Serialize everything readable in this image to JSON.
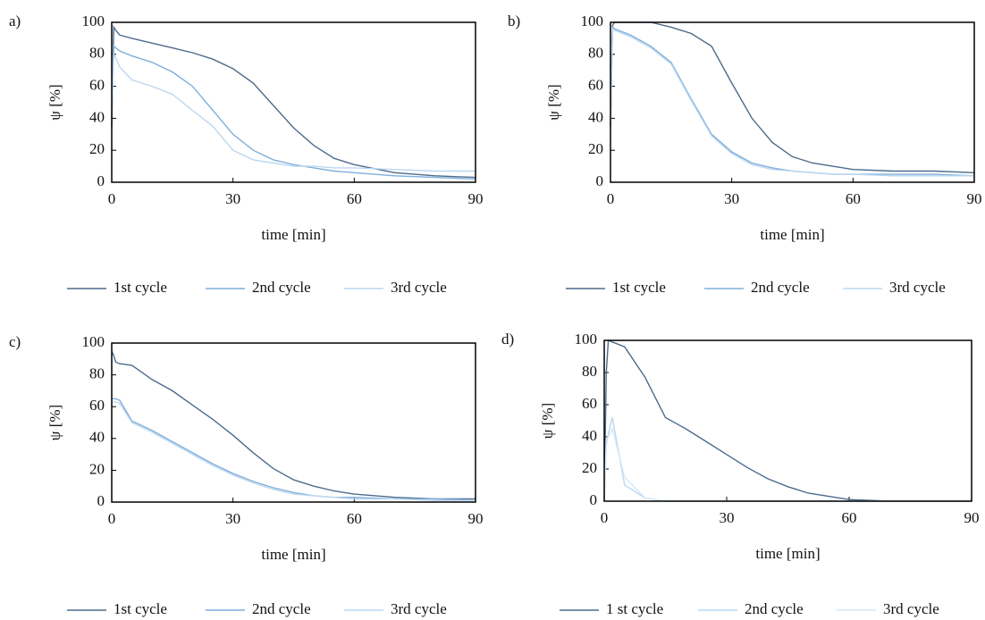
{
  "chart_data": [
    {
      "type": "line",
      "panel": "a)",
      "xlabel": "time [min]",
      "ylabel": "ψ [%]",
      "x": [
        0,
        0.5,
        1,
        2,
        5,
        10,
        15,
        20,
        25,
        30,
        35,
        40,
        45,
        50,
        55,
        60,
        70,
        80,
        90
      ],
      "xlim": [
        0,
        90
      ],
      "xticks": [
        0,
        30,
        60,
        90
      ],
      "ylim": [
        0,
        100
      ],
      "yticks": [
        0,
        20,
        40,
        60,
        80,
        100
      ],
      "series": [
        {
          "name": "1st cycle",
          "color": "#4d6b8c",
          "values": [
            35,
            97,
            95,
            92,
            90,
            87,
            84,
            81,
            77,
            71,
            62,
            48,
            34,
            23,
            15,
            11,
            6,
            4,
            3
          ]
        },
        {
          "name": "2nd cycle",
          "color": "#7eaedb",
          "values": [
            40,
            85,
            84,
            82,
            79,
            75,
            69,
            60,
            45,
            30,
            20,
            14,
            11,
            9,
            7,
            6,
            4,
            3,
            2
          ]
        },
        {
          "name": "3rd cycle",
          "color": "#bcd7f0",
          "values": [
            45,
            80,
            78,
            72,
            64,
            60,
            55,
            45,
            35,
            20,
            14,
            12,
            10,
            10,
            9,
            9,
            8,
            7,
            7
          ]
        }
      ]
    },
    {
      "type": "line",
      "panel": "b)",
      "xlabel": "time [min]",
      "ylabel": "ψ [%]",
      "x": [
        0,
        0.5,
        1,
        2,
        5,
        10,
        15,
        20,
        25,
        30,
        35,
        40,
        45,
        50,
        55,
        60,
        70,
        80,
        90
      ],
      "xlim": [
        0,
        90
      ],
      "xticks": [
        0,
        30,
        60,
        90
      ],
      "ylim": [
        0,
        100
      ],
      "yticks": [
        0,
        20,
        40,
        60,
        80,
        100
      ],
      "series": [
        {
          "name": "1st cycle",
          "color": "#4d6b8c",
          "values": [
            35,
            98,
            100,
            100,
            100,
            100,
            97,
            93,
            85,
            62,
            40,
            25,
            16,
            12,
            10,
            8,
            7,
            7,
            6
          ]
        },
        {
          "name": "2nd cycle",
          "color": "#7eaedb",
          "values": [
            35,
            97,
            96,
            95,
            92,
            85,
            75,
            52,
            30,
            19,
            12,
            9,
            7,
            6,
            5,
            5,
            5,
            5,
            4
          ]
        },
        {
          "name": "3rd cycle",
          "color": "#bcd7f0",
          "values": [
            35,
            96,
            95,
            94,
            91,
            84,
            74,
            51,
            29,
            18,
            11,
            8,
            7,
            6,
            5,
            5,
            4,
            4,
            4
          ]
        }
      ]
    },
    {
      "type": "line",
      "panel": "c)",
      "xlabel": "time [min]",
      "ylabel": "ψ [%]",
      "x": [
        0,
        0.5,
        1,
        2,
        5,
        10,
        15,
        20,
        25,
        30,
        35,
        40,
        45,
        50,
        55,
        60,
        70,
        80,
        90
      ],
      "xlim": [
        0,
        90
      ],
      "xticks": [
        0,
        30,
        60,
        90
      ],
      "ylim": [
        0,
        100
      ],
      "yticks": [
        0,
        20,
        40,
        60,
        80,
        100
      ],
      "series": [
        {
          "name": "1st cycle",
          "color": "#4d6b8c",
          "values": [
            95,
            92,
            88,
            87,
            86,
            77,
            70,
            61,
            52,
            42,
            31,
            21,
            14,
            10,
            7,
            5,
            3,
            2,
            2
          ]
        },
        {
          "name": "2nd cycle",
          "color": "#7eaedb",
          "values": [
            65,
            65,
            65,
            64,
            51,
            45,
            38,
            31,
            24,
            18,
            13,
            9,
            6,
            4,
            3,
            3,
            2,
            2,
            1
          ]
        },
        {
          "name": "3rd cycle",
          "color": "#bcd7f0",
          "values": [
            63,
            63,
            63,
            62,
            50,
            44,
            37,
            30,
            23,
            17,
            12,
            8,
            5,
            4,
            3,
            2,
            2,
            1,
            1
          ]
        }
      ]
    },
    {
      "type": "line",
      "panel": "d)",
      "xlabel": "time [min]",
      "ylabel": "ψ [%]",
      "x": [
        0,
        0.5,
        1,
        2,
        5,
        10,
        15,
        20,
        25,
        30,
        35,
        40,
        45,
        50,
        55,
        60,
        70,
        80,
        90
      ],
      "xlim": [
        0,
        90
      ],
      "xticks": [
        0,
        30,
        60,
        90
      ],
      "ylim": [
        0,
        100
      ],
      "yticks": [
        0,
        20,
        40,
        60,
        80,
        100
      ],
      "series": [
        {
          "name": "1 st cycle",
          "color": "#4d6b8c",
          "values": [
            0,
            80,
            100,
            99,
            96,
            77,
            52,
            45,
            37,
            29,
            21,
            14,
            9,
            5,
            3,
            1,
            0,
            0,
            0
          ]
        },
        {
          "name": "2nd cycle",
          "color": "#bcd7f0",
          "values": [
            0,
            35,
            42,
            52,
            10,
            2,
            0,
            0,
            0,
            0,
            0,
            0,
            0,
            0,
            0,
            0,
            0,
            0,
            0
          ]
        },
        {
          "name": "3rd cycle",
          "color": "#d6e7f7",
          "values": [
            0,
            38,
            40,
            45,
            15,
            2,
            0,
            0,
            0,
            0,
            0,
            0,
            0,
            0,
            0,
            0,
            0,
            0,
            0
          ]
        }
      ]
    }
  ]
}
